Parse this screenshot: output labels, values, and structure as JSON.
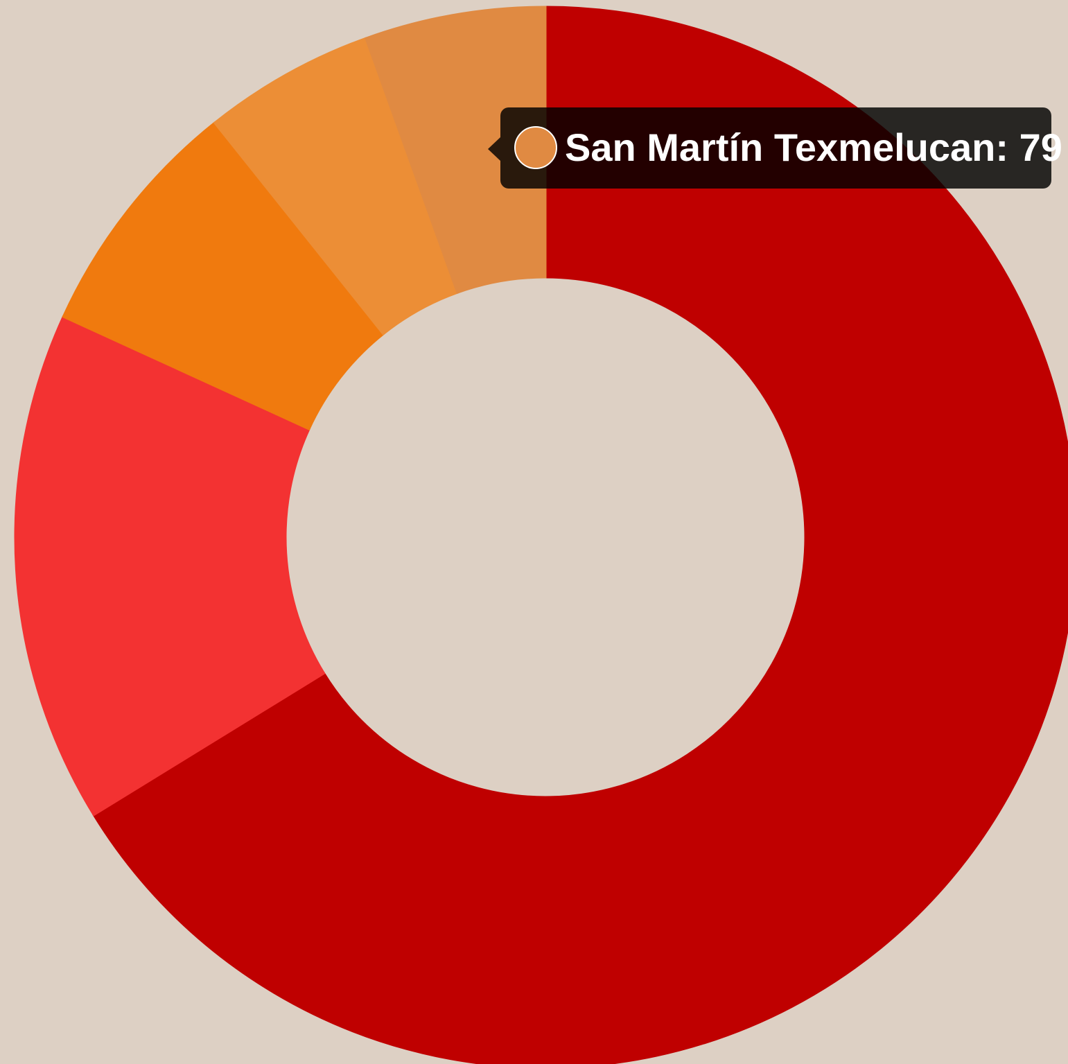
{
  "chart_data": {
    "type": "doughnut",
    "categories": [
      null,
      null,
      null,
      null,
      "San Martín Texmelucan"
    ],
    "values": [
      951,
      224,
      107,
      75,
      79
    ],
    "colors": [
      "#bf0000",
      "#f33232",
      "#f07a0e",
      "#ec8e36",
      "#e08a42"
    ],
    "tooltip_index": 4
  }
}
